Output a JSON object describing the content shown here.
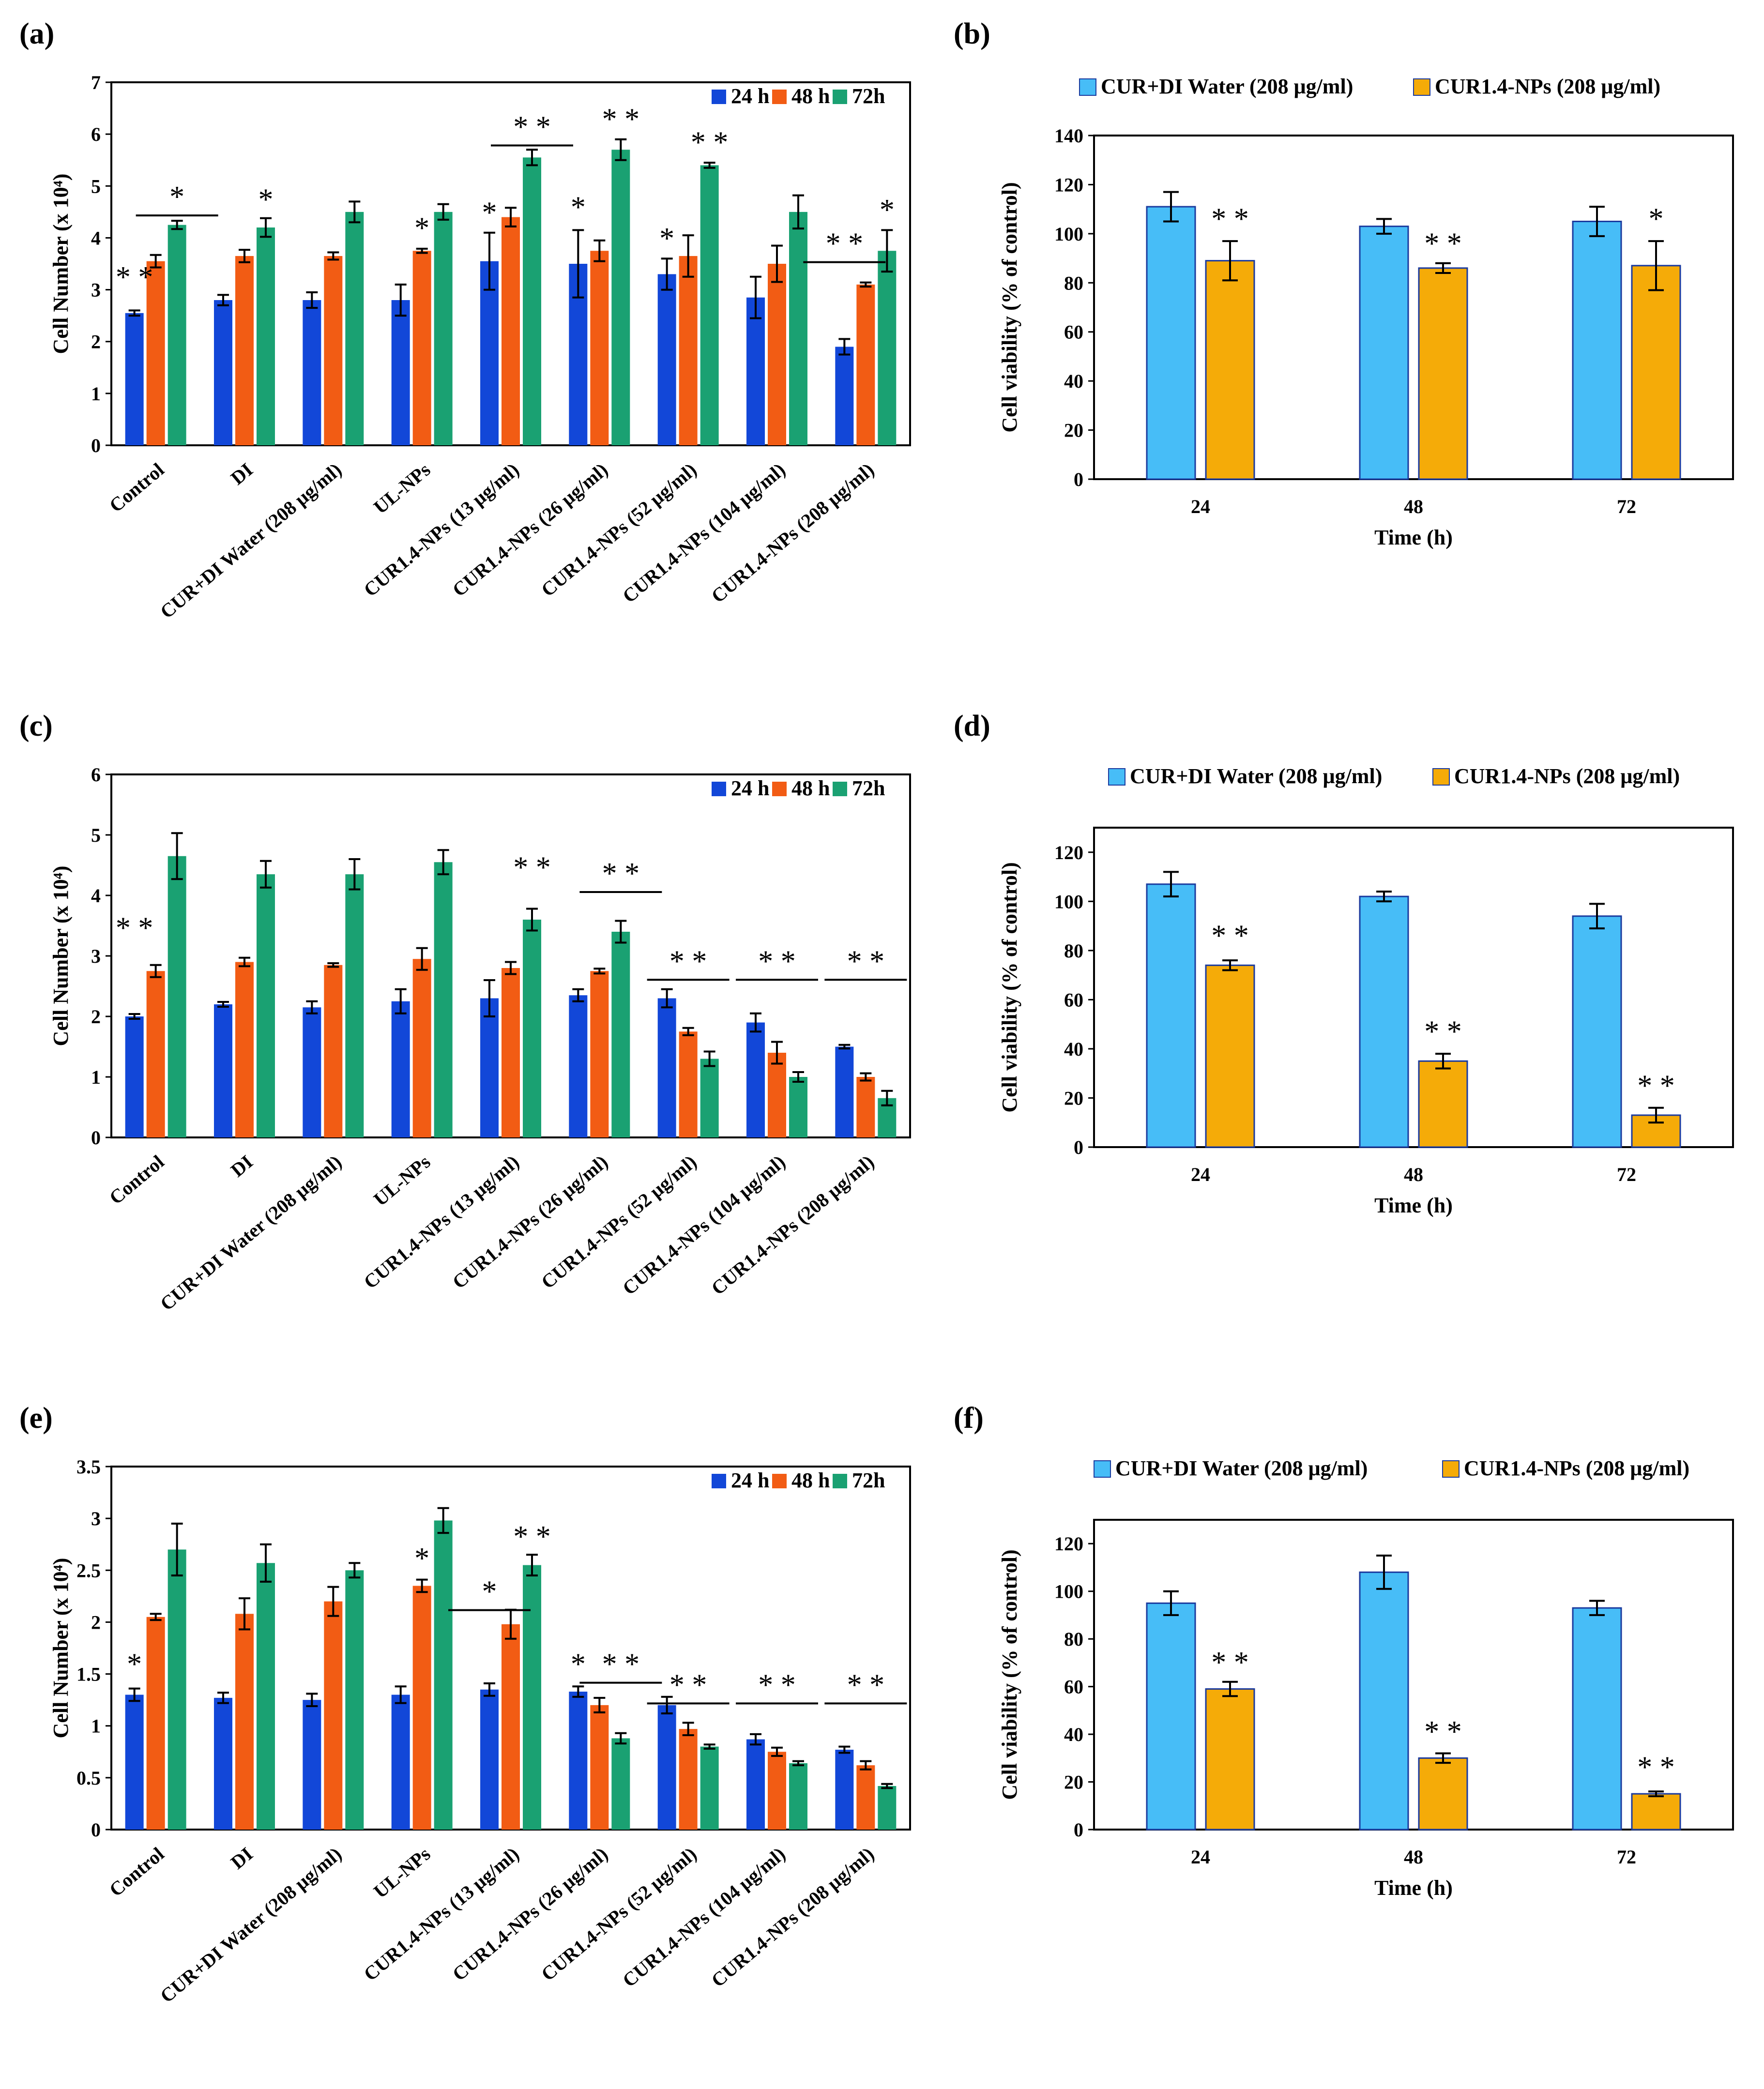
{
  "colors": {
    "h24": "#1247d8",
    "h48": "#f25c14",
    "h72": "#1aa172",
    "blueViab": "#47bdf7",
    "orangeViab": "#f5ab08",
    "barEdge": "#1a3a9e"
  },
  "chart_data": [
    {
      "id": "a",
      "panel_label": "(a)",
      "type": "bar",
      "ylabel": "Cell Number (x 10⁴)",
      "ylim": [
        0,
        7
      ],
      "yticks": [
        "0",
        "1",
        "2",
        "3",
        "4",
        "5",
        "6",
        "7"
      ],
      "legend": [
        "24 h",
        "48 h",
        "72h"
      ],
      "categories": [
        "Control",
        "DI",
        "CUR+DI Water (208 μg/ml)",
        "UL-NPs",
        "CUR1.4-NPs (13 μg/ml)",
        "CUR1.4-NPs (26 μg/ml)",
        "CUR1.4-NPs (52 μg/ml)",
        "CUR1.4-NPs (104 μg/ml)",
        "CUR1.4-NPs (208 μg/ml)"
      ],
      "series": [
        {
          "name": "24 h",
          "values": [
            2.55,
            2.8,
            2.8,
            2.8,
            3.55,
            3.5,
            3.3,
            2.85,
            1.9
          ],
          "errors": [
            0.05,
            0.1,
            0.15,
            0.3,
            0.55,
            0.65,
            0.3,
            0.4,
            0.15
          ]
        },
        {
          "name": "48 h",
          "values": [
            3.55,
            3.65,
            3.65,
            3.75,
            4.4,
            3.75,
            3.65,
            3.5,
            3.1
          ],
          "errors": [
            0.12,
            0.12,
            0.07,
            0.04,
            0.18,
            0.2,
            0.4,
            0.35,
            0.04
          ]
        },
        {
          "name": "72h",
          "values": [
            4.25,
            4.2,
            4.5,
            4.5,
            5.55,
            5.7,
            5.4,
            4.5,
            3.75
          ],
          "errors": [
            0.08,
            0.18,
            0.2,
            0.15,
            0.15,
            0.2,
            0.05,
            0.32,
            0.4
          ]
        }
      ],
      "annotations": [
        {
          "text": "* *",
          "category": 0,
          "series": 0,
          "value": 3.05,
          "line": false
        },
        {
          "text": "*",
          "category": 0,
          "series": 2,
          "value": 4.6,
          "line": true
        },
        {
          "text": "*",
          "category": 1,
          "series": 2,
          "value": 4.55,
          "line": false
        },
        {
          "text": "*",
          "category": 3,
          "series": 1,
          "value": 4.0,
          "line": false
        },
        {
          "text": "*",
          "category": 4,
          "series": 0,
          "value": 4.3,
          "line": false
        },
        {
          "text": "* *",
          "category": 4,
          "series": 2,
          "value": 5.95,
          "line": true
        },
        {
          "text": "*",
          "category": 5,
          "series": 0,
          "value": 4.4,
          "line": false
        },
        {
          "text": "* *",
          "category": 5,
          "series": 2,
          "value": 6.1,
          "line": false
        },
        {
          "text": "*",
          "category": 6,
          "series": 0,
          "value": 3.8,
          "line": false
        },
        {
          "text": "* *",
          "category": 6,
          "series": 2,
          "value": 5.65,
          "line": false
        },
        {
          "text": "* *",
          "category": 8,
          "series": 0,
          "value": 3.7,
          "line": true
        },
        {
          "text": "*",
          "category": 8,
          "series": 2,
          "value": 4.35,
          "line": false
        }
      ]
    },
    {
      "id": "b",
      "panel_label": "(b)",
      "type": "bar",
      "ylabel": "Cell viability  (% of control)",
      "xlabel": "Time (h)",
      "ylim": [
        0,
        140
      ],
      "yticks": [
        "0",
        "20",
        "40",
        "60",
        "80",
        "100",
        "120",
        "140"
      ],
      "legend": [
        "CUR+DI Water (208 μg/ml)",
        "CUR1.4-NPs (208 μg/ml)"
      ],
      "categories": [
        "24",
        "48",
        "72"
      ],
      "series": [
        {
          "name": "CUR+DI Water (208 μg/ml)",
          "values": [
            111,
            103,
            105
          ],
          "errors": [
            6,
            3,
            6
          ]
        },
        {
          "name": "CUR1.4-NPs (208 μg/ml)",
          "values": [
            89,
            86,
            87
          ],
          "errors": [
            8,
            2,
            10
          ]
        }
      ],
      "annotations": [
        {
          "text": "* *",
          "category": 0,
          "series": 1,
          "value": 102,
          "line": false
        },
        {
          "text": "* *",
          "category": 1,
          "series": 1,
          "value": 92,
          "line": false
        },
        {
          "text": "*",
          "category": 2,
          "series": 1,
          "value": 102,
          "line": false
        }
      ]
    },
    {
      "id": "c",
      "panel_label": "(c)",
      "type": "bar",
      "ylabel": "Cell Number (x 10⁴)",
      "ylim": [
        0,
        6
      ],
      "yticks": [
        "0",
        "1",
        "2",
        "3",
        "4",
        "5",
        "6"
      ],
      "legend": [
        "24 h",
        "48 h",
        "72h"
      ],
      "categories": [
        "Control",
        "DI",
        "CUR+DI Water (208 μg/ml)",
        "UL-NPs",
        "CUR1.4-NPs (13 μg/ml)",
        "CUR1.4-NPs (26 μg/ml)",
        "CUR1.4-NPs (52 μg/ml)",
        "CUR1.4-NPs (104 μg/ml)",
        "CUR1.4-NPs (208 μg/ml)"
      ],
      "series": [
        {
          "name": "24 h",
          "values": [
            2.0,
            2.2,
            2.15,
            2.25,
            2.3,
            2.35,
            2.3,
            1.9,
            1.5
          ],
          "errors": [
            0.04,
            0.04,
            0.1,
            0.2,
            0.3,
            0.1,
            0.15,
            0.15,
            0.03
          ]
        },
        {
          "name": "48 h",
          "values": [
            2.75,
            2.9,
            2.85,
            2.95,
            2.8,
            2.75,
            1.75,
            1.4,
            1.0
          ],
          "errors": [
            0.1,
            0.07,
            0.03,
            0.18,
            0.1,
            0.04,
            0.06,
            0.18,
            0.06
          ]
        },
        {
          "name": "72h",
          "values": [
            4.65,
            4.35,
            4.35,
            4.55,
            3.6,
            3.4,
            1.3,
            1.0,
            0.65
          ],
          "errors": [
            0.38,
            0.22,
            0.25,
            0.2,
            0.18,
            0.18,
            0.12,
            0.08,
            0.12
          ]
        }
      ],
      "annotations": [
        {
          "text": "* *",
          "category": 0,
          "series": 0,
          "value": 3.3,
          "line": false
        },
        {
          "text": "* *",
          "category": 4,
          "series": 2,
          "value": 4.3,
          "line": false
        },
        {
          "text": "* *",
          "category": 5,
          "series": 2,
          "value": 4.2,
          "line": true
        },
        {
          "text": "* *",
          "category": 6,
          "series": 1,
          "value": 2.75,
          "line": true
        },
        {
          "text": "* *",
          "category": 7,
          "series": 1,
          "value": 2.75,
          "line": true
        },
        {
          "text": "* *",
          "category": 8,
          "series": 1,
          "value": 2.75,
          "line": true
        }
      ]
    },
    {
      "id": "d",
      "panel_label": "(d)",
      "type": "bar",
      "ylabel": "Cell viability  (% of control)",
      "xlabel": "Time (h)",
      "ylim": [
        0,
        130
      ],
      "yticks": [
        "0",
        "20",
        "40",
        "60",
        "80",
        "100",
        "120"
      ],
      "legend": [
        "CUR+DI Water (208 μg/ml)",
        "CUR1.4-NPs (208 μg/ml)"
      ],
      "categories": [
        "24",
        "48",
        "72"
      ],
      "series": [
        {
          "name": "CUR+DI Water (208 μg/ml)",
          "values": [
            107,
            102,
            94
          ],
          "errors": [
            5,
            2,
            5
          ]
        },
        {
          "name": "CUR1.4-NPs (208 μg/ml)",
          "values": [
            74,
            35,
            13
          ],
          "errors": [
            2,
            3,
            3
          ]
        }
      ],
      "annotations": [
        {
          "text": "* *",
          "category": 0,
          "series": 1,
          "value": 82,
          "line": false
        },
        {
          "text": "* *",
          "category": 1,
          "series": 1,
          "value": 43,
          "line": false
        },
        {
          "text": "* *",
          "category": 2,
          "series": 1,
          "value": 21,
          "line": false
        }
      ]
    },
    {
      "id": "e",
      "panel_label": "(e)",
      "type": "bar",
      "ylabel": "Cell Number (x 10⁴)",
      "ylim": [
        0,
        3.5
      ],
      "yticks": [
        "0",
        "0.5",
        "1",
        "1.5",
        "2",
        "2.5",
        "3",
        "3.5"
      ],
      "legend": [
        "24 h",
        "48 h",
        "72h"
      ],
      "categories": [
        "Control",
        "DI",
        "CUR+DI Water (208 μg/ml)",
        "UL-NPs",
        "CUR1.4-NPs (13 μg/ml)",
        "CUR1.4-NPs (26 μg/ml)",
        "CUR1.4-NPs (52 μg/ml)",
        "CUR1.4-NPs (104 μg/ml)",
        "CUR1.4-NPs (208 μg/ml)"
      ],
      "series": [
        {
          "name": "24 h",
          "values": [
            1.3,
            1.27,
            1.25,
            1.3,
            1.35,
            1.33,
            1.2,
            0.87,
            0.77
          ],
          "errors": [
            0.06,
            0.05,
            0.06,
            0.08,
            0.06,
            0.05,
            0.08,
            0.05,
            0.03
          ]
        },
        {
          "name": "48 h",
          "values": [
            2.05,
            2.08,
            2.2,
            2.35,
            1.98,
            1.2,
            0.97,
            0.75,
            0.62
          ],
          "errors": [
            0.03,
            0.15,
            0.14,
            0.06,
            0.14,
            0.07,
            0.06,
            0.04,
            0.04
          ]
        },
        {
          "name": "72h",
          "values": [
            2.7,
            2.57,
            2.5,
            2.98,
            2.55,
            0.88,
            0.8,
            0.64,
            0.42
          ],
          "errors": [
            0.25,
            0.18,
            0.07,
            0.12,
            0.1,
            0.05,
            0.02,
            0.02,
            0.02
          ]
        }
      ],
      "annotations": [
        {
          "text": "*",
          "category": 0,
          "series": 0,
          "value": 1.5,
          "line": false
        },
        {
          "text": "*",
          "category": 3,
          "series": 1,
          "value": 2.52,
          "line": false
        },
        {
          "text": "*",
          "category": 4,
          "series": 0,
          "value": 2.2,
          "line": true
        },
        {
          "text": "* *",
          "category": 4,
          "series": 2,
          "value": 2.73,
          "line": false
        },
        {
          "text": "*",
          "category": 5,
          "series": 0,
          "value": 1.5,
          "line": false
        },
        {
          "text": "* *",
          "category": 5,
          "series": 2,
          "value": 1.5,
          "line": true
        },
        {
          "text": "* *",
          "category": 6,
          "series": 1,
          "value": 1.3,
          "line": true
        },
        {
          "text": "* *",
          "category": 7,
          "series": 1,
          "value": 1.3,
          "line": true
        },
        {
          "text": "* *",
          "category": 8,
          "series": 1,
          "value": 1.3,
          "line": true
        }
      ]
    },
    {
      "id": "f",
      "panel_label": "(f)",
      "type": "bar",
      "ylabel": "Cell viability  (% of control)",
      "xlabel": "Time (h)",
      "ylim": [
        0,
        130
      ],
      "yticks": [
        "0",
        "20",
        "40",
        "60",
        "80",
        "100",
        "120"
      ],
      "legend": [
        "CUR+DI Water (208 μg/ml)",
        "CUR1.4-NPs (208 μg/ml)"
      ],
      "categories": [
        "24",
        "48",
        "72"
      ],
      "series": [
        {
          "name": "CUR+DI Water (208 μg/ml)",
          "values": [
            95,
            108,
            93
          ],
          "errors": [
            5,
            7,
            3
          ]
        },
        {
          "name": "CUR1.4-NPs (208 μg/ml)",
          "values": [
            59,
            30,
            15
          ],
          "errors": [
            3,
            2,
            1
          ]
        }
      ],
      "annotations": [
        {
          "text": "* *",
          "category": 0,
          "series": 1,
          "value": 66,
          "line": false
        },
        {
          "text": "* *",
          "category": 1,
          "series": 1,
          "value": 37,
          "line": false
        },
        {
          "text": "* *",
          "category": 2,
          "series": 1,
          "value": 22,
          "line": false
        }
      ]
    }
  ]
}
